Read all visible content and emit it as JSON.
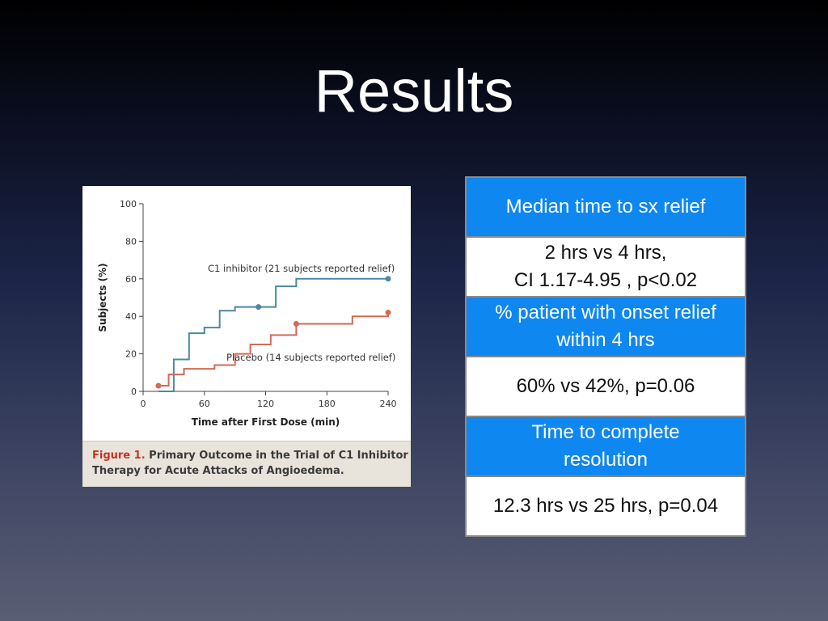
{
  "slide": {
    "title": "Results"
  },
  "figure": {
    "caption_label": "Figure 1.",
    "caption_text_line1": "Primary Outcome in the Trial of C1 Inhibitor",
    "caption_text_line2": "Therapy for Acute Attacks of Angioedema."
  },
  "chart_data": {
    "type": "line",
    "title": "",
    "xlabel": "Time after First Dose (min)",
    "ylabel": "Subjects (%)",
    "xlim": [
      0,
      240
    ],
    "ylim": [
      0,
      100
    ],
    "xticks": [
      0,
      60,
      120,
      180,
      240
    ],
    "yticks": [
      0,
      20,
      40,
      60,
      80,
      100
    ],
    "step": true,
    "grid": false,
    "series": [
      {
        "name": "C1 inhibitor (21 subjects reported relief)",
        "color": "#4a8aa0",
        "x": [
          15,
          30,
          45,
          60,
          75,
          90,
          105,
          130,
          150,
          170,
          240
        ],
        "y": [
          0,
          17,
          31,
          34,
          43,
          45,
          45,
          56,
          60,
          60,
          60
        ]
      },
      {
        "name": "Placebo (14 subjects reported relief)",
        "color": "#d26a55",
        "x": [
          15,
          25,
          40,
          70,
          90,
          105,
          125,
          150,
          180,
          205,
          240
        ],
        "y": [
          3,
          9,
          12,
          14,
          20,
          25,
          30,
          36,
          36,
          40,
          42
        ]
      }
    ],
    "markers": [
      {
        "series": 0,
        "x": 113,
        "y": 45
      },
      {
        "series": 0,
        "x": 240,
        "y": 60
      },
      {
        "series": 1,
        "x": 150,
        "y": 36
      },
      {
        "series": 1,
        "x": 240,
        "y": 42
      },
      {
        "series": 1,
        "x": 15,
        "y": 3
      }
    ],
    "annotations": [
      {
        "text": "C1 inhibitor (21 subjects reported relief)",
        "series": 0
      },
      {
        "text": "Placebo (14 subjects reported relief)",
        "series": 1
      }
    ]
  },
  "table": {
    "rows": [
      {
        "type": "header",
        "text": "Median time to sx relief"
      },
      {
        "type": "value",
        "line1": "2 hrs vs 4 hrs,",
        "line2": "CI 1.17-4.95 , p<0.02"
      },
      {
        "type": "header",
        "line1": "% patient with onset relief",
        "line2": "within 4 hrs"
      },
      {
        "type": "value",
        "text": "60% vs 42%, p=0.06"
      },
      {
        "type": "header",
        "line1": "Time to complete",
        "line2": "resolution"
      },
      {
        "type": "value",
        "text": "12.3 hrs vs 25 hrs, p=0.04"
      }
    ]
  }
}
